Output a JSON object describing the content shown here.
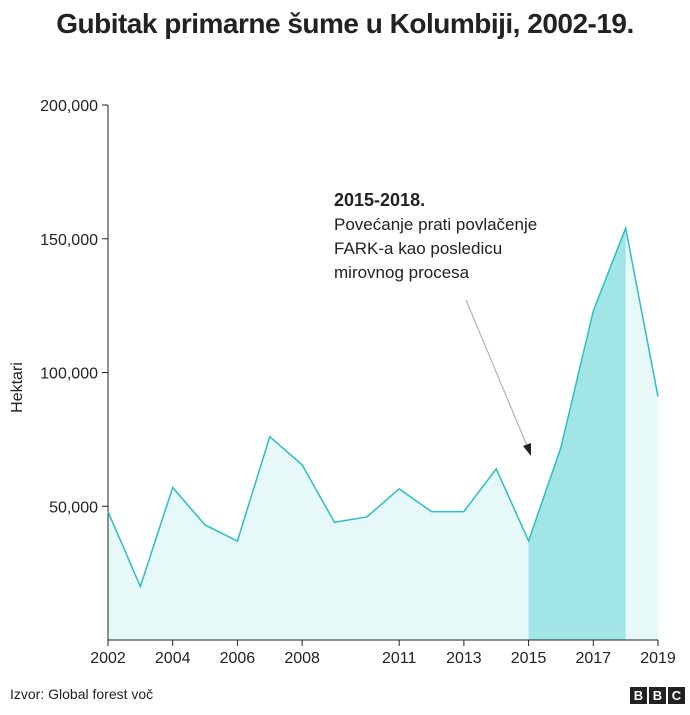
{
  "title": "Gubitak primarne šume u Kolumbiji, 2002-19.",
  "source": "Izvor: Global forest voč",
  "logo": [
    "B",
    "B",
    "C"
  ],
  "colors": {
    "line": "#2bbfc4",
    "area_light": "#e6f8f8",
    "area_highlight": "#a2e5e6",
    "axis": "#222222",
    "arrow": "#b3b3b3"
  },
  "annotation": {
    "title": "2015-2018.",
    "lines": [
      "Povećanje prati povlačenje",
      "FARK-a kao posledicu",
      "mirovnog procesa"
    ]
  },
  "chart_data": {
    "type": "area",
    "title": "Gubitak primarne šume u Kolumbiji, 2002-19.",
    "xlabel": "",
    "ylabel": "Hektari",
    "x": [
      2002,
      2003,
      2004,
      2005,
      2006,
      2007,
      2008,
      2009,
      2010,
      2011,
      2012,
      2013,
      2014,
      2015,
      2016,
      2017,
      2018,
      2019
    ],
    "values": [
      48000,
      20000,
      57000,
      43000,
      37000,
      76000,
      65500,
      44000,
      46000,
      56500,
      48000,
      48000,
      64000,
      37000,
      72000,
      123000,
      154000,
      91000
    ],
    "highlight_range": [
      2015,
      2018
    ],
    "xlim": [
      2002,
      2019
    ],
    "ylim": [
      0,
      200000
    ],
    "x_ticks": [
      2002,
      2004,
      2006,
      2008,
      2011,
      2013,
      2015,
      2017,
      2019
    ],
    "y_ticks": [
      50000,
      100000,
      150000,
      200000
    ],
    "y_tick_labels": [
      "50,000",
      "100,000",
      "150,000",
      "200,000"
    ],
    "grid": false,
    "legend": "none"
  }
}
